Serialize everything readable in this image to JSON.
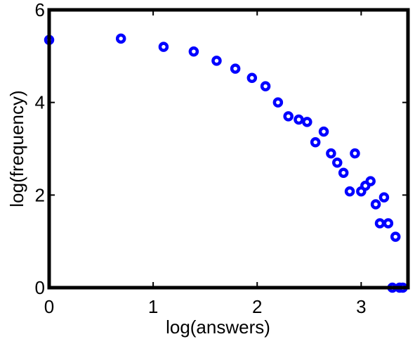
{
  "chart_data": {
    "type": "scatter",
    "title": "",
    "xlabel": "log(answers)",
    "ylabel": "log(frequency)",
    "xlim": [
      0,
      3.45
    ],
    "ylim": [
      0,
      6
    ],
    "xticks": [
      0,
      1,
      2,
      3
    ],
    "yticks": [
      0,
      2,
      4,
      6
    ],
    "xtick_labels": [
      "0",
      "1",
      "2",
      "3"
    ],
    "ytick_labels": [
      "0",
      "2",
      "4",
      "6"
    ],
    "grid": false,
    "legend": "none",
    "marker_color": "#0000ff",
    "series": [
      {
        "marker": "circle",
        "x": [
          0.0,
          0.69,
          1.1,
          1.39,
          1.61,
          1.79,
          1.95,
          2.08,
          2.2,
          2.3,
          2.4,
          2.48,
          2.56,
          2.64,
          2.71,
          2.77,
          2.83,
          2.89,
          2.94,
          3.0,
          3.04,
          3.09,
          3.14,
          3.18,
          3.22,
          3.26,
          3.3,
          3.33,
          3.37,
          3.4
        ],
        "y": [
          5.35,
          5.38,
          5.2,
          5.1,
          4.9,
          4.73,
          4.53,
          4.35,
          4.0,
          3.7,
          3.63,
          3.58,
          3.14,
          3.37,
          2.9,
          2.7,
          2.48,
          2.08,
          2.9,
          2.08,
          2.2,
          2.3,
          1.8,
          1.39,
          1.95,
          1.39,
          0.0,
          1.1,
          0.0,
          0.0
        ]
      }
    ]
  }
}
